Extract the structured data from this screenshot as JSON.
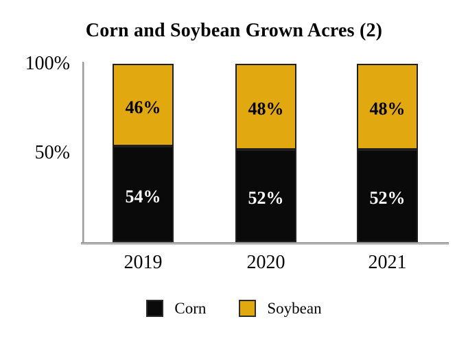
{
  "chart_data": {
    "type": "bar",
    "stacked": true,
    "percent_stacked": true,
    "title": "Corn and Soybean Grown Acres (2)",
    "categories": [
      "2019",
      "2020",
      "2021"
    ],
    "series": [
      {
        "name": "Corn",
        "color": "#0a0a0a",
        "label_color": "#ffffff",
        "values": [
          54,
          52,
          52
        ]
      },
      {
        "name": "Soybean",
        "color": "#e2a810",
        "label_color": "#000000",
        "values": [
          46,
          48,
          48
        ]
      }
    ],
    "data_label_suffix": "%",
    "y_ticks": [
      {
        "value": 100,
        "label": "100%"
      },
      {
        "value": 50,
        "label": "50%"
      }
    ],
    "ylim": [
      0,
      100
    ],
    "grid": false,
    "legend_position": "bottom"
  },
  "legend": {
    "items": [
      {
        "label": "Corn",
        "swatch_color": "#0a0a0a"
      },
      {
        "label": "Soybean",
        "swatch_color": "#e2a810"
      }
    ]
  },
  "colors": {
    "corn": "#0a0a0a",
    "soybean": "#e2a810",
    "axis": "#9a9a9a",
    "segment_border": "#1f1f1f"
  }
}
